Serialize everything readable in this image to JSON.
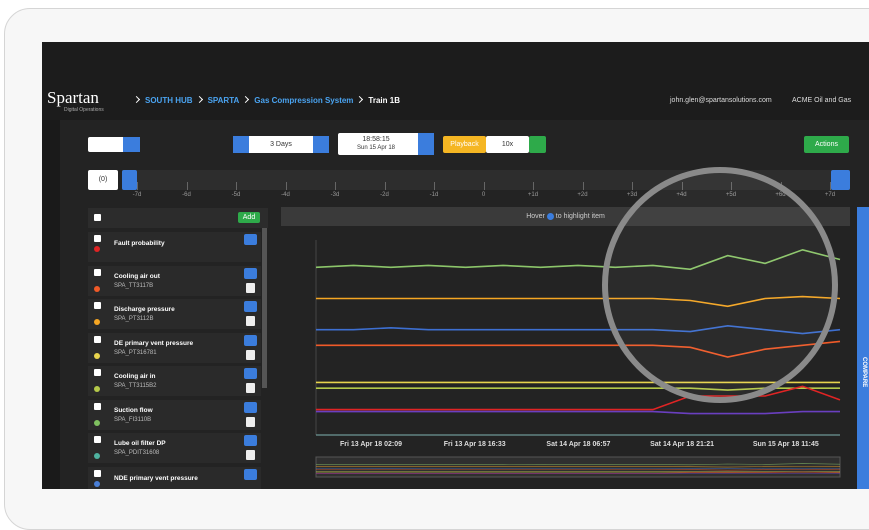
{
  "header": {
    "logo": "Spartan",
    "logo_sub": "Digital Operations",
    "breadcrumb": [
      "SOUTH HUB",
      "SPARTA",
      "Gas Compression System",
      "Train 1B"
    ],
    "user": "john.glen@spartansolutions.com",
    "org": "ACME Oil and Gas"
  },
  "toolbar": {
    "range": "3 Days",
    "time": "18:58:15",
    "date": "Sun 15 Apr 18",
    "playback": "Playback",
    "speed": "10x",
    "actions": "Actions"
  },
  "timeline": {
    "filter": "(0)",
    "ticks": [
      "-7d",
      "-6d",
      "-5d",
      "-4d",
      "-3d",
      "-2d",
      "-1d",
      "0",
      "+1d",
      "+2d",
      "+3d",
      "+4d",
      "+5d",
      "+6d",
      "+7d"
    ]
  },
  "signals": {
    "add": "Add",
    "items": [
      {
        "name": "Fault probability",
        "color": "#e02424"
      },
      {
        "name": "Cooling air out",
        "tag": "SPA_TT3117B",
        "color": "#f05a28"
      },
      {
        "name": "Discharge pressure",
        "tag": "SPA_PT3112B",
        "color": "#f5a623"
      },
      {
        "name": "DE primary vent pressure",
        "tag": "SPA_PT316781",
        "color": "#e8d44d"
      },
      {
        "name": "Cooling air in",
        "tag": "SPA_TT3115B2",
        "color": "#b5c94a"
      },
      {
        "name": "Suction flow",
        "tag": "SPA_FI3110B",
        "color": "#7fc160"
      },
      {
        "name": "Lube oil filter DP",
        "tag": "SPA_PDIT31608",
        "color": "#4fb3a0"
      },
      {
        "name": "NDE primary vent pressure",
        "color": "#4a7fd6"
      }
    ]
  },
  "chart": {
    "hint_before": "Hover",
    "hint_after": "to highlight item",
    "x_labels": [
      "Fri 13 Apr 18 02:09",
      "Fri 13 Apr 18 16:33",
      "Sat 14 Apr 18 06:57",
      "Sat 14 Apr 18 21:21",
      "Sun 15 Apr 18 11:45"
    ],
    "ylim": [
      0,
      100
    ],
    "series": [
      {
        "color": "#8cc66a",
        "values": [
          86,
          87,
          86,
          87,
          86,
          87,
          86,
          87,
          86,
          87,
          85,
          92,
          88,
          95,
          90
        ]
      },
      {
        "color": "#f5a623",
        "values": [
          70,
          70,
          70,
          70,
          70,
          70,
          70,
          70,
          70,
          70,
          69,
          66,
          70,
          71,
          70
        ]
      },
      {
        "color": "#3d6fd1",
        "values": [
          54,
          54,
          55,
          54,
          54,
          54,
          54,
          54,
          54,
          54,
          53,
          56,
          54,
          52,
          54
        ]
      },
      {
        "color": "#f05a28",
        "values": [
          46,
          46,
          46,
          46,
          46,
          46,
          46,
          46,
          46,
          46,
          45,
          40,
          44,
          46,
          48
        ]
      },
      {
        "color": "#e8d44d",
        "values": [
          27,
          27,
          27,
          27,
          27,
          27,
          27,
          27,
          27,
          27,
          27,
          27,
          27,
          27,
          27
        ]
      },
      {
        "color": "#b5c94a",
        "values": [
          24,
          24,
          24,
          24,
          24,
          24,
          24,
          24,
          24,
          24,
          24,
          23,
          24,
          24,
          24
        ]
      },
      {
        "color": "#e02424",
        "values": [
          13,
          13,
          13,
          13,
          13,
          13,
          13,
          13,
          13,
          13,
          20,
          20,
          20,
          25,
          18
        ]
      },
      {
        "color": "#6a3fc0",
        "values": [
          12,
          12,
          12,
          12,
          12,
          12,
          12,
          12,
          12,
          12,
          11,
          11,
          11,
          12,
          12
        ]
      }
    ]
  },
  "compare": "COMPARE"
}
